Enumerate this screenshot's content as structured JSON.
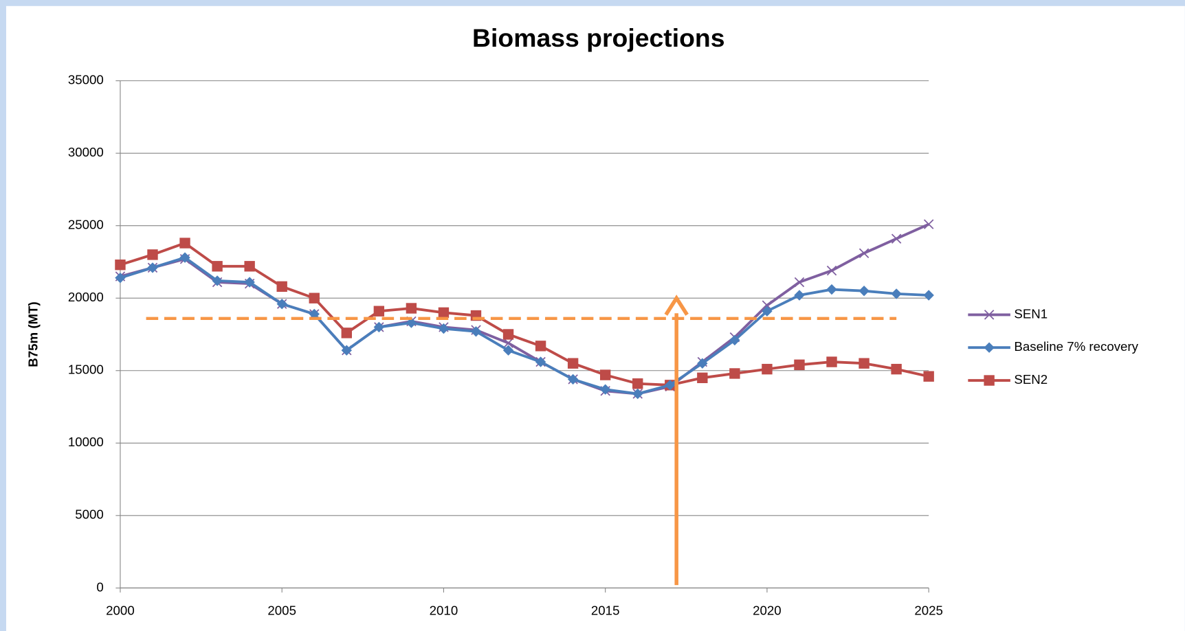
{
  "chart_data": {
    "type": "line",
    "title": "Biomass projections",
    "y_label": "B75m (MT)",
    "x": [
      2000,
      2001,
      2002,
      2003,
      2004,
      2005,
      2006,
      2007,
      2008,
      2009,
      2010,
      2011,
      2012,
      2013,
      2014,
      2015,
      2016,
      2017,
      2018,
      2019,
      2020,
      2021,
      2022,
      2023,
      2024,
      2025
    ],
    "series": [
      {
        "name": "SEN1",
        "color": "#7f5fa0",
        "marker": "x",
        "values": [
          21500,
          22100,
          22700,
          21100,
          21000,
          19600,
          18900,
          16400,
          18000,
          18400,
          18000,
          17800,
          16900,
          15600,
          14400,
          13600,
          13400,
          13900,
          15600,
          17300,
          19500,
          21100,
          21900,
          23100,
          24100,
          25100
        ]
      },
      {
        "name": "Baseline 7% recovery",
        "color": "#4a7ebb",
        "marker": "diamond",
        "values": [
          21400,
          22100,
          22800,
          21200,
          21100,
          19600,
          18900,
          16400,
          18000,
          18300,
          17900,
          17700,
          16400,
          15600,
          14400,
          13700,
          13400,
          14000,
          15500,
          17100,
          19100,
          20200,
          20600,
          20500,
          20300,
          20200
        ]
      },
      {
        "name": "SEN2",
        "color": "#be4b48",
        "marker": "square",
        "values": [
          22300,
          23000,
          23800,
          22200,
          22200,
          20800,
          20000,
          17600,
          19100,
          19300,
          19000,
          18800,
          17500,
          16700,
          15500,
          14700,
          14100,
          14000,
          14500,
          14800,
          15100,
          15400,
          15600,
          15500,
          15100,
          14600
        ]
      }
    ],
    "reference_line": {
      "y": 18600,
      "x": [
        2000.8,
        2024
      ],
      "color": "#f79646"
    },
    "arrow": {
      "x": 2017.2,
      "y": [
        200,
        20000
      ],
      "color": "#f79646"
    },
    "xlim": [
      2000,
      2025
    ],
    "xticks": [
      2000,
      2005,
      2010,
      2015,
      2020,
      2025
    ],
    "ylim": [
      0,
      35000
    ],
    "yticks": [
      0,
      5000,
      10000,
      15000,
      20000,
      25000,
      30000,
      35000
    ],
    "grid": true,
    "legend": "right"
  }
}
